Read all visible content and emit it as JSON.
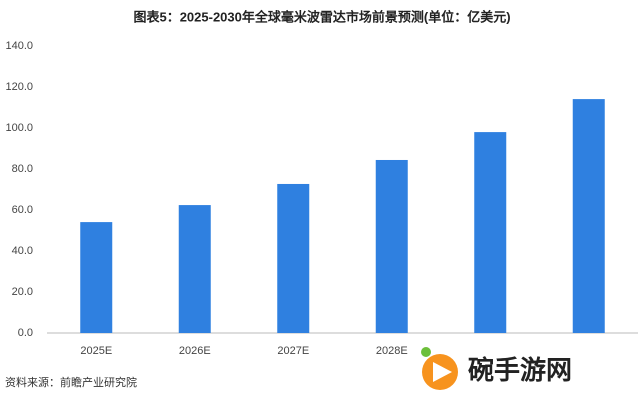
{
  "chart_data": {
    "type": "bar",
    "title": "图表5：2025-2030年全球毫米波雷达市场前景预测(单位：亿美元)",
    "categories": [
      "2025E",
      "2026E",
      "2027E",
      "2028E",
      null,
      null
    ],
    "values": [
      54.1,
      62.4,
      72.7,
      84.4,
      98.0,
      114.1
    ],
    "color": "#2f80e0",
    "ylim": [
      0,
      140
    ],
    "yticks": [
      {
        "value": 0,
        "label": "0.0"
      },
      {
        "value": 20,
        "label": "20.0"
      },
      {
        "value": 40,
        "label": "40.0"
      },
      {
        "value": 60,
        "label": "60.0"
      },
      {
        "value": 80,
        "label": "80.0"
      },
      {
        "value": 100,
        "label": "100.0"
      },
      {
        "value": 120,
        "label": "120.0"
      },
      {
        "value": 140,
        "label": "140.0"
      }
    ],
    "grid": false,
    "source": "资料来源：前瞻产业研究院",
    "watermark": "碗手游网"
  }
}
